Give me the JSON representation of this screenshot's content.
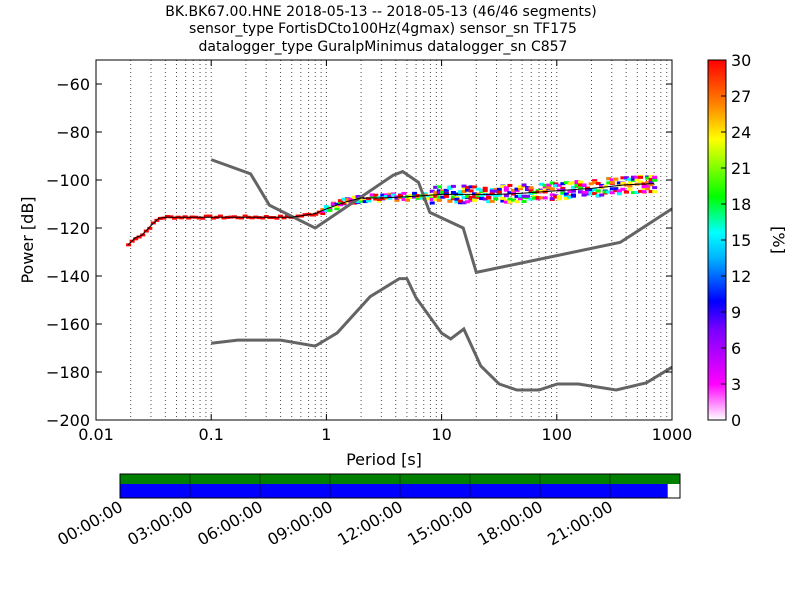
{
  "title_lines": [
    "BK.BK67.00.HNE   2018-05-13 -- 2018-05-13  (46/46 segments)",
    "sensor_type FortisDCto100Hz(4gmax) sensor_sn TF175",
    "datalogger_type GuralpMinimus datalogger_sn C857"
  ],
  "chart_data": [
    {
      "type": "heatmap",
      "xlabel": "Period [s]",
      "ylabel": "Power [dB]",
      "x_scale": "log",
      "xlim": [
        0.01,
        1000
      ],
      "ylim": [
        -200,
        -50
      ],
      "x_ticks": [
        0.01,
        0.1,
        1,
        10,
        100,
        1000
      ],
      "x_tick_labels": [
        "0.01",
        "0.1",
        "1",
        "10",
        "100",
        "1000"
      ],
      "y_ticks": [
        -200,
        -180,
        -160,
        -140,
        -120,
        -100,
        -80,
        -60
      ],
      "y_tick_labels": [
        "−200",
        "−180",
        "−160",
        "−140",
        "−120",
        "−100",
        "−80",
        "−60"
      ],
      "grid": "dotted vertical lines at log subdivisions",
      "colorbar": {
        "label": "[%]",
        "min": 0,
        "max": 30,
        "ticks": [
          0,
          3,
          6,
          9,
          12,
          15,
          18,
          21,
          24,
          27,
          30
        ],
        "colormap": [
          "#ffffff",
          "#ff00ff",
          "#0000ff",
          "#00ffff",
          "#00ff00",
          "#ffff00",
          "#ff0000"
        ]
      },
      "nhnm": {
        "x": [
          0.1,
          0.22,
          0.32,
          0.8,
          3.8,
          4.6,
          6.3,
          7.9,
          15.4,
          20,
          354.8,
          1000
        ],
        "y": [
          -91.5,
          -97.4,
          -110.5,
          -120,
          -98,
          -96.5,
          -101,
          -113.5,
          -120,
          -138.5,
          -126,
          -112
        ]
      },
      "nlnm": {
        "x": [
          0.1,
          0.17,
          0.4,
          0.8,
          1.24,
          2.4,
          4.3,
          5,
          6,
          10,
          12,
          15.6,
          21.9,
          31.6,
          45,
          70,
          101,
          154,
          328,
          600,
          1000
        ],
        "y": [
          -168,
          -166.7,
          -166.7,
          -169.2,
          -163.7,
          -148.6,
          -141.1,
          -141.1,
          -149,
          -163.8,
          -166.2,
          -162.1,
          -177.5,
          -185,
          -187.5,
          -187.5,
          -185,
          -185,
          -187.5,
          -184.5,
          -178
        ]
      },
      "psd_mean": {
        "x": [
          0.019,
          0.022,
          0.025,
          0.03,
          0.035,
          0.04,
          0.05,
          0.1,
          0.2,
          0.5,
          0.8,
          1,
          1.5,
          2,
          3,
          5,
          7,
          10,
          15,
          20,
          30,
          50,
          100,
          200,
          400,
          700
        ],
        "y": [
          -127,
          -124,
          -123,
          -119,
          -116,
          -115.5,
          -115.5,
          -115.5,
          -115.5,
          -115.5,
          -114,
          -112,
          -109,
          -107.5,
          -107.5,
          -107,
          -106.5,
          -106,
          -106,
          -106,
          -106,
          -105.5,
          -104.5,
          -103.5,
          -102,
          -101.5
        ]
      }
    },
    {
      "type": "timeline",
      "x_tick_labels": [
        "00:00:00",
        "03:00:00",
        "06:00:00",
        "09:00:00",
        "12:00:00",
        "15:00:00",
        "18:00:00",
        "21:00:00"
      ],
      "coverage_fraction": 0.978,
      "colors": {
        "full": "#008000",
        "segments": "#0000ff"
      }
    }
  ]
}
